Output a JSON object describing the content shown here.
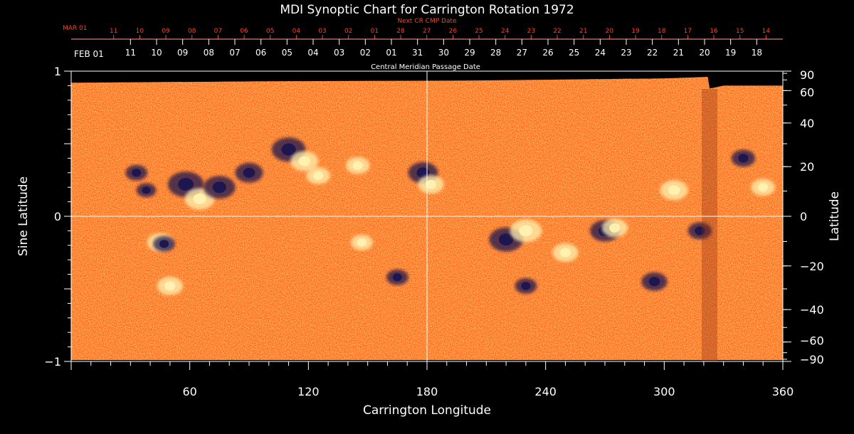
{
  "chart_data": {
    "type": "heatmap",
    "title": "MDI Synoptic Chart for Carrington Rotation 1972",
    "xlabel": "Carrington Longitude",
    "ylabel_left": "Sine Latitude",
    "ylabel_right": "Latitude",
    "xlim": [
      0,
      360
    ],
    "ylim": [
      -1,
      1
    ],
    "x_ticks": [
      60,
      120,
      180,
      240,
      300,
      360
    ],
    "y_ticks_left": [
      {
        "value": 1,
        "label": "1"
      },
      {
        "value": 0,
        "label": "0"
      },
      {
        "value": -1,
        "label": "−1"
      }
    ],
    "y_ticks_right": [
      {
        "lat": 90,
        "label": "90"
      },
      {
        "lat": 60,
        "label": "60"
      },
      {
        "lat": 40,
        "label": "40"
      },
      {
        "lat": 20,
        "label": "20"
      },
      {
        "lat": 0,
        "label": "0"
      },
      {
        "lat": -20,
        "label": "−20"
      },
      {
        "lat": -40,
        "label": "−40"
      },
      {
        "lat": -60,
        "label": "−60"
      },
      {
        "lat": -90,
        "label": "−90"
      }
    ],
    "cmp_axis": {
      "title": "Central Meridian Passage Date",
      "start_label": "FEB 01",
      "ticks": [
        {
          "lon": 30,
          "label": "11"
        },
        {
          "lon": 43.2,
          "label": "10"
        },
        {
          "lon": 56.4,
          "label": "09"
        },
        {
          "lon": 69.6,
          "label": "08"
        },
        {
          "lon": 82.8,
          "label": "07"
        },
        {
          "lon": 96.0,
          "label": "06"
        },
        {
          "lon": 109.2,
          "label": "05"
        },
        {
          "lon": 122.4,
          "label": "04"
        },
        {
          "lon": 135.6,
          "label": "03"
        },
        {
          "lon": 148.8,
          "label": "02"
        },
        {
          "lon": 162.0,
          "label": "01"
        },
        {
          "lon": 175.2,
          "label": "31"
        },
        {
          "lon": 188.4,
          "label": "30"
        },
        {
          "lon": 201.6,
          "label": "29"
        },
        {
          "lon": 214.8,
          "label": "28"
        },
        {
          "lon": 228.0,
          "label": "27"
        },
        {
          "lon": 241.2,
          "label": "26"
        },
        {
          "lon": 254.4,
          "label": "25"
        },
        {
          "lon": 267.6,
          "label": "24"
        },
        {
          "lon": 280.8,
          "label": "23"
        },
        {
          "lon": 294.0,
          "label": "22"
        },
        {
          "lon": 307.2,
          "label": "21"
        },
        {
          "lon": 320.4,
          "label": "20"
        },
        {
          "lon": 333.6,
          "label": "19"
        },
        {
          "lon": 346.8,
          "label": "18"
        }
      ]
    },
    "next_cr_axis": {
      "title": "Next CR CMP Date",
      "start_label": "MAR 01",
      "ticks": [
        {
          "lon": 21.5,
          "label": "11"
        },
        {
          "lon": 34.7,
          "label": "10"
        },
        {
          "lon": 47.9,
          "label": "09"
        },
        {
          "lon": 61.1,
          "label": "08"
        },
        {
          "lon": 74.3,
          "label": "07"
        },
        {
          "lon": 87.5,
          "label": "06"
        },
        {
          "lon": 100.7,
          "label": "05"
        },
        {
          "lon": 113.9,
          "label": "04"
        },
        {
          "lon": 127.1,
          "label": "03"
        },
        {
          "lon": 140.3,
          "label": "02"
        },
        {
          "lon": 153.5,
          "label": "01"
        },
        {
          "lon": 166.7,
          "label": "28"
        },
        {
          "lon": 179.9,
          "label": "27"
        },
        {
          "lon": 193.1,
          "label": "26"
        },
        {
          "lon": 206.3,
          "label": "25"
        },
        {
          "lon": 219.5,
          "label": "24"
        },
        {
          "lon": 232.7,
          "label": "23"
        },
        {
          "lon": 245.9,
          "label": "22"
        },
        {
          "lon": 259.1,
          "label": "21"
        },
        {
          "lon": 272.3,
          "label": "20"
        },
        {
          "lon": 285.5,
          "label": "19"
        },
        {
          "lon": 298.7,
          "label": "18"
        },
        {
          "lon": 311.9,
          "label": "17"
        },
        {
          "lon": 325.1,
          "label": "16"
        },
        {
          "lon": 338.3,
          "label": "15"
        },
        {
          "lon": 351.5,
          "label": "14"
        }
      ]
    },
    "colors": {
      "background": "#000000",
      "field_base": "#ff5a10",
      "field_dark": "#c02800",
      "positive_polarity": "#fff2b0",
      "negative_polarity": "#1a1550",
      "next_cr_text": "#ff4020",
      "axis": "#ffffff"
    },
    "active_regions": [
      {
        "lon": 33,
        "sinlat": 0.3,
        "polarity": "negative",
        "size": 1.0
      },
      {
        "lon": 38,
        "sinlat": 0.18,
        "polarity": "negative",
        "size": 0.8
      },
      {
        "lon": 58,
        "sinlat": 0.22,
        "polarity": "negative",
        "size": 2.4
      },
      {
        "lon": 65,
        "sinlat": 0.12,
        "polarity": "positive",
        "size": 1.8
      },
      {
        "lon": 75,
        "sinlat": 0.2,
        "polarity": "negative",
        "size": 2.0
      },
      {
        "lon": 90,
        "sinlat": 0.3,
        "polarity": "negative",
        "size": 1.6
      },
      {
        "lon": 110,
        "sinlat": 0.46,
        "polarity": "negative",
        "size": 2.2
      },
      {
        "lon": 118,
        "sinlat": 0.38,
        "polarity": "positive",
        "size": 1.6
      },
      {
        "lon": 125,
        "sinlat": 0.28,
        "polarity": "positive",
        "size": 1.2
      },
      {
        "lon": 145,
        "sinlat": 0.35,
        "polarity": "positive",
        "size": 1.2
      },
      {
        "lon": 178,
        "sinlat": 0.3,
        "polarity": "negative",
        "size": 1.8
      },
      {
        "lon": 182,
        "sinlat": 0.22,
        "polarity": "positive",
        "size": 1.4
      },
      {
        "lon": 220,
        "sinlat": -0.16,
        "polarity": "negative",
        "size": 2.2
      },
      {
        "lon": 230,
        "sinlat": -0.1,
        "polarity": "positive",
        "size": 2.0
      },
      {
        "lon": 250,
        "sinlat": -0.25,
        "polarity": "positive",
        "size": 1.4
      },
      {
        "lon": 270,
        "sinlat": -0.1,
        "polarity": "negative",
        "size": 1.8
      },
      {
        "lon": 275,
        "sinlat": -0.08,
        "polarity": "positive",
        "size": 1.4
      },
      {
        "lon": 45,
        "sinlat": -0.18,
        "polarity": "positive",
        "size": 1.4
      },
      {
        "lon": 47,
        "sinlat": -0.19,
        "polarity": "negative",
        "size": 1.0
      },
      {
        "lon": 50,
        "sinlat": -0.48,
        "polarity": "positive",
        "size": 1.4
      },
      {
        "lon": 147,
        "sinlat": -0.18,
        "polarity": "positive",
        "size": 1.0
      },
      {
        "lon": 165,
        "sinlat": -0.42,
        "polarity": "negative",
        "size": 1.0
      },
      {
        "lon": 230,
        "sinlat": -0.48,
        "polarity": "negative",
        "size": 1.0
      },
      {
        "lon": 305,
        "sinlat": 0.18,
        "polarity": "positive",
        "size": 1.6
      },
      {
        "lon": 340,
        "sinlat": 0.4,
        "polarity": "negative",
        "size": 1.2
      },
      {
        "lon": 350,
        "sinlat": 0.2,
        "polarity": "positive",
        "size": 1.2
      },
      {
        "lon": 318,
        "sinlat": -0.1,
        "polarity": "negative",
        "size": 1.2
      },
      {
        "lon": 295,
        "sinlat": -0.45,
        "polarity": "negative",
        "size": 1.4
      }
    ]
  }
}
